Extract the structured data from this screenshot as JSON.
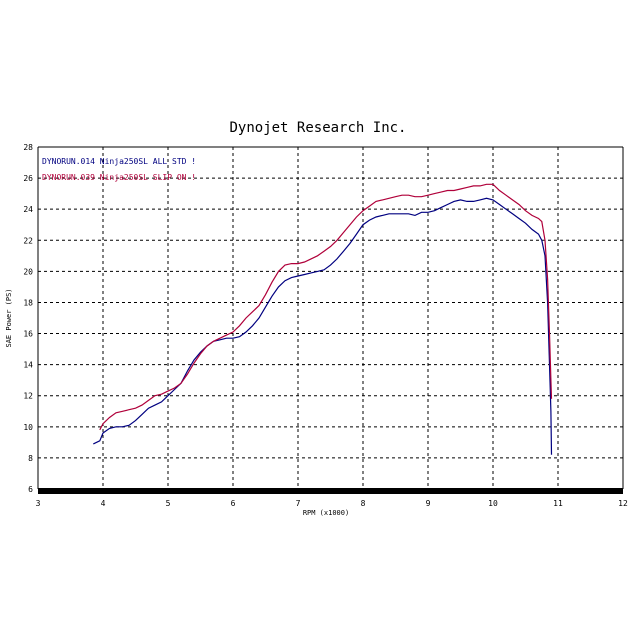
{
  "chart_data": {
    "type": "line",
    "title": "Dynojet  Research  Inc.",
    "xlabel": "RPM (x1000)",
    "ylabel": "SAE Power (PS)",
    "xlim": [
      3,
      12
    ],
    "ylim": [
      6,
      28
    ],
    "xticks": [
      3,
      4,
      5,
      6,
      7,
      8,
      9,
      10,
      11,
      12
    ],
    "yticks": [
      6,
      8,
      10,
      12,
      14,
      16,
      18,
      20,
      22,
      24,
      26,
      28
    ],
    "grid": true,
    "legend_position": "top-left",
    "series": [
      {
        "name": "DYNORUN.014  Ninja250SL ALL STD !",
        "color": "#000080",
        "points": [
          [
            3.85,
            8.9
          ],
          [
            3.95,
            9.1
          ],
          [
            4.0,
            9.6
          ],
          [
            4.1,
            9.9
          ],
          [
            4.2,
            10.0
          ],
          [
            4.3,
            10.0
          ],
          [
            4.4,
            10.1
          ],
          [
            4.5,
            10.4
          ],
          [
            4.6,
            10.8
          ],
          [
            4.7,
            11.2
          ],
          [
            4.8,
            11.4
          ],
          [
            4.9,
            11.6
          ],
          [
            5.0,
            12.0
          ],
          [
            5.1,
            12.4
          ],
          [
            5.2,
            12.8
          ],
          [
            5.3,
            13.6
          ],
          [
            5.4,
            14.3
          ],
          [
            5.5,
            14.8
          ],
          [
            5.6,
            15.2
          ],
          [
            5.7,
            15.5
          ],
          [
            5.8,
            15.6
          ],
          [
            5.9,
            15.7
          ],
          [
            6.0,
            15.7
          ],
          [
            6.1,
            15.8
          ],
          [
            6.2,
            16.1
          ],
          [
            6.3,
            16.5
          ],
          [
            6.4,
            17.0
          ],
          [
            6.5,
            17.7
          ],
          [
            6.6,
            18.4
          ],
          [
            6.7,
            19.0
          ],
          [
            6.8,
            19.4
          ],
          [
            6.9,
            19.6
          ],
          [
            7.0,
            19.7
          ],
          [
            7.1,
            19.8
          ],
          [
            7.2,
            19.9
          ],
          [
            7.3,
            20.0
          ],
          [
            7.4,
            20.1
          ],
          [
            7.5,
            20.4
          ],
          [
            7.6,
            20.8
          ],
          [
            7.7,
            21.3
          ],
          [
            7.8,
            21.8
          ],
          [
            7.9,
            22.4
          ],
          [
            8.0,
            23.0
          ],
          [
            8.1,
            23.3
          ],
          [
            8.2,
            23.5
          ],
          [
            8.3,
            23.6
          ],
          [
            8.4,
            23.7
          ],
          [
            8.5,
            23.7
          ],
          [
            8.6,
            23.7
          ],
          [
            8.7,
            23.7
          ],
          [
            8.8,
            23.6
          ],
          [
            8.9,
            23.8
          ],
          [
            9.0,
            23.8
          ],
          [
            9.1,
            23.9
          ],
          [
            9.2,
            24.1
          ],
          [
            9.3,
            24.3
          ],
          [
            9.4,
            24.5
          ],
          [
            9.5,
            24.6
          ],
          [
            9.6,
            24.5
          ],
          [
            9.7,
            24.5
          ],
          [
            9.8,
            24.6
          ],
          [
            9.9,
            24.7
          ],
          [
            10.0,
            24.6
          ],
          [
            10.1,
            24.3
          ],
          [
            10.2,
            24.0
          ],
          [
            10.3,
            23.7
          ],
          [
            10.4,
            23.4
          ],
          [
            10.5,
            23.1
          ],
          [
            10.6,
            22.7
          ],
          [
            10.7,
            22.4
          ],
          [
            10.75,
            22.0
          ],
          [
            10.8,
            21.0
          ],
          [
            10.84,
            18.0
          ],
          [
            10.87,
            14.0
          ],
          [
            10.89,
            11.0
          ],
          [
            10.9,
            8.2
          ]
        ]
      },
      {
        "name": "DYNORUN.039  Ninja250SL SLIP ON !",
        "color": "#b0003a",
        "points": [
          [
            3.95,
            9.8
          ],
          [
            4.0,
            10.2
          ],
          [
            4.1,
            10.6
          ],
          [
            4.2,
            10.9
          ],
          [
            4.3,
            11.0
          ],
          [
            4.4,
            11.1
          ],
          [
            4.5,
            11.2
          ],
          [
            4.6,
            11.4
          ],
          [
            4.7,
            11.7
          ],
          [
            4.8,
            12.0
          ],
          [
            4.9,
            12.1
          ],
          [
            5.0,
            12.3
          ],
          [
            5.1,
            12.5
          ],
          [
            5.2,
            12.8
          ],
          [
            5.3,
            13.4
          ],
          [
            5.4,
            14.1
          ],
          [
            5.5,
            14.7
          ],
          [
            5.6,
            15.2
          ],
          [
            5.7,
            15.5
          ],
          [
            5.8,
            15.7
          ],
          [
            5.9,
            15.9
          ],
          [
            6.0,
            16.1
          ],
          [
            6.1,
            16.5
          ],
          [
            6.2,
            17.0
          ],
          [
            6.3,
            17.4
          ],
          [
            6.4,
            17.8
          ],
          [
            6.5,
            18.5
          ],
          [
            6.6,
            19.3
          ],
          [
            6.7,
            20.0
          ],
          [
            6.8,
            20.4
          ],
          [
            6.9,
            20.5
          ],
          [
            7.0,
            20.5
          ],
          [
            7.1,
            20.6
          ],
          [
            7.2,
            20.8
          ],
          [
            7.3,
            21.0
          ],
          [
            7.4,
            21.3
          ],
          [
            7.5,
            21.6
          ],
          [
            7.6,
            22.0
          ],
          [
            7.7,
            22.5
          ],
          [
            7.8,
            23.0
          ],
          [
            7.9,
            23.5
          ],
          [
            8.0,
            23.9
          ],
          [
            8.1,
            24.2
          ],
          [
            8.2,
            24.5
          ],
          [
            8.3,
            24.6
          ],
          [
            8.4,
            24.7
          ],
          [
            8.5,
            24.8
          ],
          [
            8.6,
            24.9
          ],
          [
            8.7,
            24.9
          ],
          [
            8.8,
            24.8
          ],
          [
            8.9,
            24.8
          ],
          [
            9.0,
            24.9
          ],
          [
            9.1,
            25.0
          ],
          [
            9.2,
            25.1
          ],
          [
            9.3,
            25.2
          ],
          [
            9.4,
            25.2
          ],
          [
            9.5,
            25.3
          ],
          [
            9.6,
            25.4
          ],
          [
            9.7,
            25.5
          ],
          [
            9.8,
            25.5
          ],
          [
            9.9,
            25.6
          ],
          [
            10.0,
            25.6
          ],
          [
            10.1,
            25.2
          ],
          [
            10.2,
            24.9
          ],
          [
            10.3,
            24.6
          ],
          [
            10.4,
            24.3
          ],
          [
            10.5,
            23.9
          ],
          [
            10.6,
            23.6
          ],
          [
            10.7,
            23.4
          ],
          [
            10.75,
            23.2
          ],
          [
            10.8,
            22.0
          ],
          [
            10.84,
            19.5
          ],
          [
            10.87,
            16.0
          ],
          [
            10.89,
            13.0
          ],
          [
            10.9,
            11.8
          ]
        ]
      }
    ]
  }
}
